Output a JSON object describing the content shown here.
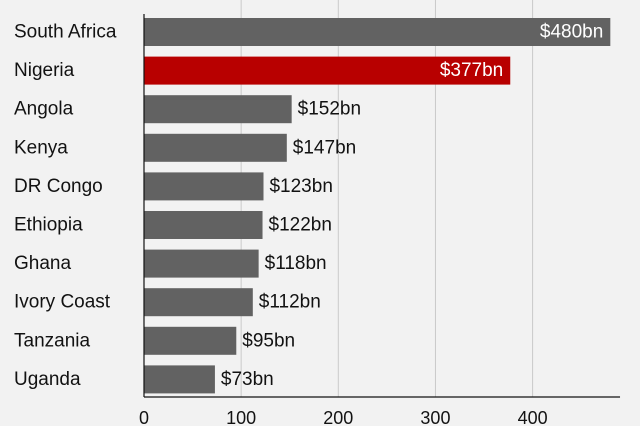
{
  "chart_data": {
    "type": "bar",
    "orientation": "horizontal",
    "categories": [
      "South Africa",
      "Nigeria",
      "Angola",
      "Kenya",
      "DR Congo",
      "Ethiopia",
      "Ghana",
      "Ivory Coast",
      "Tanzania",
      "Uganda"
    ],
    "values": [
      480,
      377,
      152,
      147,
      123,
      122,
      118,
      112,
      95,
      73
    ],
    "value_labels": [
      "$480bn",
      "$377bn",
      "$152bn",
      "$147bn",
      "$123bn",
      "$122bn",
      "$118bn",
      "$112bn",
      "$95bn",
      "$73bn"
    ],
    "highlight": "Nigeria",
    "xlim": [
      0,
      490
    ],
    "xticks": [
      0,
      100,
      200,
      300,
      400
    ],
    "grid": true,
    "colors": {
      "bar": "#626262",
      "highlight": "#b80000",
      "grid": "#c9c9c9",
      "axis": "#121212",
      "text": "#121212",
      "background": "#f2f2f2"
    }
  }
}
